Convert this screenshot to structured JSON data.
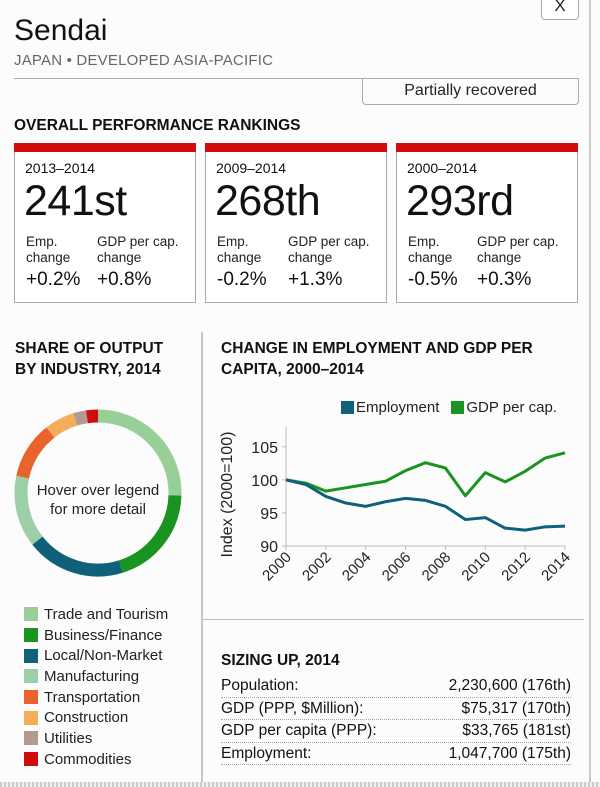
{
  "header": {
    "close_label": "X",
    "city": "Sendai",
    "region": "JAPAN • DEVELOPED ASIA-PACIFIC",
    "status": "Partially recovered"
  },
  "rankings": {
    "title": "OVERALL PERFORMANCE RANKINGS",
    "emp_label": [
      "Emp.",
      "change"
    ],
    "gdp_label": [
      "GDP per cap.",
      "change"
    ],
    "cards": [
      {
        "period": "2013–2014",
        "rank": "241st",
        "emp_change": "+0.2%",
        "gdp_change": "+0.8%"
      },
      {
        "period": "2009–2014",
        "rank": "268th",
        "emp_change": "-0.2%",
        "gdp_change": "+1.3%"
      },
      {
        "period": "2000–2014",
        "rank": "293rd",
        "emp_change": "-0.5%",
        "gdp_change": "+0.3%"
      }
    ],
    "accent_color": "#d10c0c"
  },
  "share": {
    "title_line1": "SHARE OF OUTPUT",
    "title_line2": "BY INDUSTRY, 2014",
    "center_line1": "Hover over legend",
    "center_line2": "for more detail"
  },
  "change": {
    "title_line1": "CHANGE IN EMPLOYMENT AND GDP PER",
    "title_line2": "CAPITA, 2000–2014"
  },
  "sizing": {
    "title": "SIZING UP, 2014",
    "rows": [
      {
        "label": "Population:",
        "value": "2,230,600 (176th)"
      },
      {
        "label": "GDP (PPP, $Million):",
        "value": "$75,317 (170th)"
      },
      {
        "label": "GDP per capita (PPP):",
        "value": "$33,765 (181st)"
      },
      {
        "label": "Employment:",
        "value": "1,047,700 (175th)"
      }
    ]
  },
  "chart_data": [
    {
      "type": "pie",
      "title": "SHARE OF OUTPUT BY INDUSTRY, 2014",
      "donut": true,
      "categories": [
        "Trade and Tourism",
        "Business/Finance",
        "Local/Non-Market",
        "Manufacturing",
        "Transportation",
        "Construction",
        "Utilities",
        "Commodities"
      ],
      "values": [
        25.5,
        19.7,
        19.2,
        13.9,
        11.1,
        5.8,
        2.5,
        2.3
      ],
      "colors": [
        "#98cf98",
        "#1a9420",
        "#0e6178",
        "#9ccfa8",
        "#e8642c",
        "#f5ad5a",
        "#b49a8c",
        "#d10c0c"
      ],
      "legend_position": "bottom"
    },
    {
      "type": "line",
      "title": "CHANGE IN EMPLOYMENT AND GDP PER CAPITA, 2000–2014",
      "xlabel": "",
      "ylabel": "Index (2000=100)",
      "x": [
        2000,
        2001,
        2002,
        2003,
        2004,
        2005,
        2006,
        2007,
        2008,
        2009,
        2010,
        2011,
        2012,
        2013,
        2014
      ],
      "xticks": [
        "2000",
        "2002",
        "2004",
        "2006",
        "2008",
        "2010",
        "2012",
        "2014"
      ],
      "yticks": [
        "90",
        "95",
        "100",
        "105"
      ],
      "ylim": [
        90,
        108
      ],
      "legend_position": "top-right",
      "series": [
        {
          "name": "Employment",
          "color": "#0e6178",
          "values": [
            100,
            99.3,
            97.5,
            96.5,
            96.0,
            96.7,
            97.2,
            96.9,
            96.0,
            94.0,
            94.3,
            92.7,
            92.4,
            92.9,
            93.0
          ]
        },
        {
          "name": "GDP per cap.",
          "color": "#1a9420",
          "values": [
            100,
            99.5,
            98.3,
            98.8,
            99.3,
            99.8,
            101.4,
            102.6,
            101.8,
            97.6,
            101.1,
            99.7,
            101.3,
            103.3,
            104.1
          ]
        }
      ]
    }
  ]
}
